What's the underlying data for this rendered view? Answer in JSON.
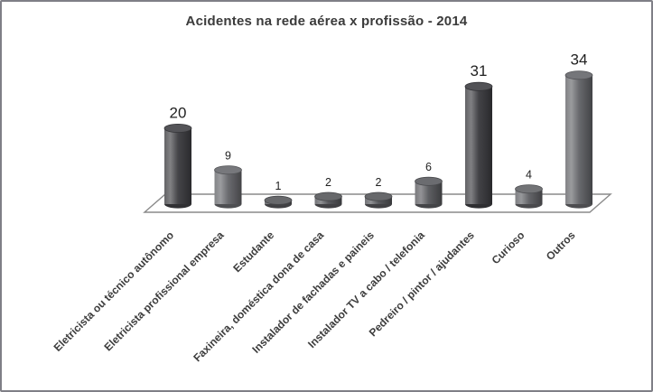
{
  "window": {
    "background": "#ffffff",
    "border_color": "#7f7f86"
  },
  "chart_data": {
    "type": "bar",
    "subtype": "3d-cylinder",
    "title": "Acidentes na rede aérea x profissão - 2014",
    "title_color": "#3b3b3b",
    "categories": [
      "Eletricista ou técnico autônomo",
      "Eletricista profissional empresa",
      "Estudante",
      "Faxineira, doméstica dona de casa",
      "Instalador de fachadas e paineis",
      "Instalador TV a cabo / telefonia",
      "Pedreiro / pintor / ajudantes",
      "Curioso",
      "Outros"
    ],
    "values": [
      20,
      9,
      1,
      2,
      2,
      6,
      31,
      4,
      34
    ],
    "bar_colors": [
      "#414145",
      "#68696d",
      "#56575b",
      "#56575b",
      "#56575b",
      "#5b5c60",
      "#3f3f43",
      "#626367",
      "#66676b"
    ],
    "value_label_large": [
      true,
      false,
      false,
      false,
      false,
      false,
      true,
      false,
      true
    ],
    "value_label_color": "#1f1f1f",
    "category_label_color": "#3d3d3d",
    "floor_line_color": "#8a8a8a",
    "xlabel": "",
    "ylabel": "",
    "ylim": [
      0,
      35
    ],
    "gridlines": false,
    "legend": "none"
  }
}
